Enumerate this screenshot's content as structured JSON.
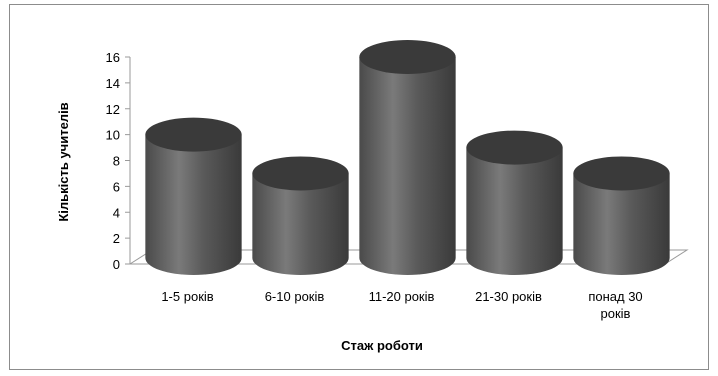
{
  "chart_data": {
    "type": "bar",
    "style": "3d-cylinder",
    "categories": [
      [
        "1-5 років"
      ],
      [
        "6-10 років"
      ],
      [
        "11-20 років"
      ],
      [
        "21-30 років"
      ],
      [
        "понад 30",
        "років"
      ]
    ],
    "values": [
      10,
      7,
      16,
      9,
      7
    ],
    "title": "",
    "xlabel": "Стаж роботи",
    "ylabel": "Кількість учителів",
    "ylim": [
      0,
      16
    ],
    "yticks": [
      0,
      2,
      4,
      6,
      8,
      10,
      12,
      14,
      16
    ],
    "grid": false,
    "legend": "none",
    "colors": {
      "bar_side": "#5e5e5e",
      "bar_top": "#3a3a3a",
      "bar_highlight": "#8a8a8a",
      "axis": "#9a9a9a"
    }
  }
}
